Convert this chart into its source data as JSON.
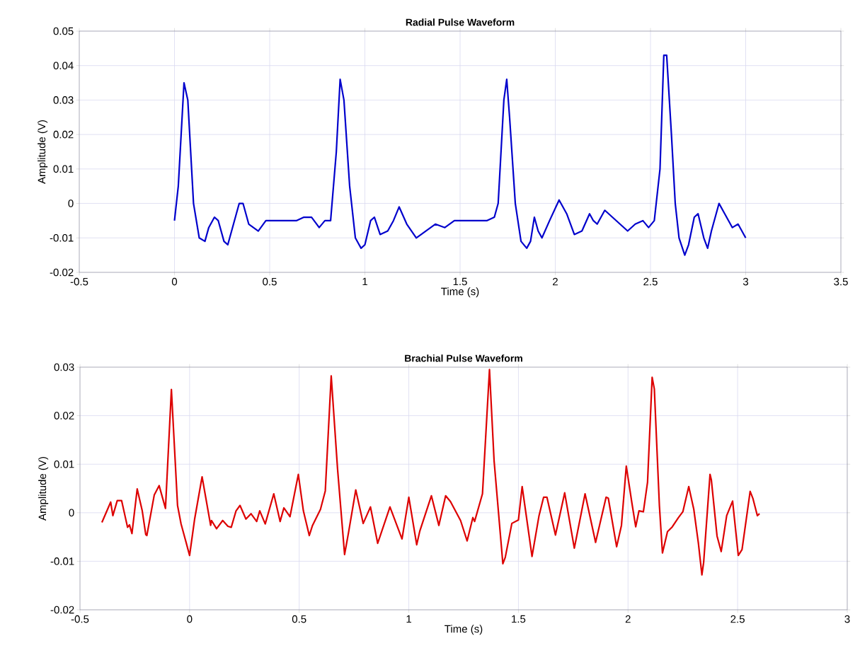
{
  "chart_data": [
    {
      "type": "line",
      "title": "Radial Pulse Waveform",
      "xlabel": "Time (s)",
      "ylabel": "Amplitude (V)",
      "grid": true,
      "xlim": [
        -0.5,
        3.5
      ],
      "xticks": [
        -0.5,
        0,
        0.5,
        1,
        1.5,
        2,
        2.5,
        3,
        3.5
      ],
      "ylim": [
        -0.02,
        0.05
      ],
      "yticks": [
        -0.02,
        -0.01,
        0,
        0.01,
        0.02,
        0.03,
        0.04,
        0.05
      ],
      "series": [
        {
          "color": "#0000cc",
          "x": [
            0,
            0.02,
            0.05,
            0.07,
            0.1,
            0.13,
            0.16,
            0.18,
            0.21,
            0.23,
            0.26,
            0.28,
            0.31,
            0.34,
            0.36,
            0.39,
            0.44,
            0.48,
            0.52,
            0.58,
            0.64,
            0.68,
            0.72,
            0.76,
            0.79,
            0.82,
            0.85,
            0.87,
            0.89,
            0.92,
            0.95,
            0.98,
            1.0,
            1.03,
            1.05,
            1.08,
            1.12,
            1.15,
            1.18,
            1.22,
            1.27,
            1.32,
            1.37,
            1.42,
            1.47,
            1.52,
            1.58,
            1.64,
            1.68,
            1.7,
            1.73,
            1.745,
            1.76,
            1.79,
            1.82,
            1.85,
            1.87,
            1.89,
            1.91,
            1.93,
            1.97,
            2.02,
            2.06,
            2.1,
            2.14,
            2.18,
            2.2,
            2.22,
            2.26,
            2.3,
            2.34,
            2.38,
            2.42,
            2.46,
            2.49,
            2.52,
            2.55,
            2.57,
            2.585,
            2.61,
            2.63,
            2.65,
            2.68,
            2.7,
            2.73,
            2.75,
            2.78,
            2.8,
            2.82,
            2.86,
            2.89,
            2.93,
            2.96,
            3.0
          ],
          "values": [
            -0.005,
            0.005,
            0.035,
            0.03,
            0.0,
            -0.01,
            -0.011,
            -0.007,
            -0.004,
            -0.005,
            -0.011,
            -0.012,
            -0.006,
            0.0,
            0.0,
            -0.006,
            -0.008,
            -0.005,
            -0.005,
            -0.005,
            -0.005,
            -0.004,
            -0.004,
            -0.007,
            -0.005,
            -0.005,
            0.015,
            0.036,
            0.03,
            0.005,
            -0.01,
            -0.013,
            -0.012,
            -0.005,
            -0.004,
            -0.009,
            -0.008,
            -0.005,
            -0.001,
            -0.006,
            -0.01,
            -0.008,
            -0.006,
            -0.007,
            -0.005,
            -0.005,
            -0.005,
            -0.005,
            -0.004,
            0.0,
            0.03,
            0.036,
            0.025,
            0.0,
            -0.011,
            -0.013,
            -0.011,
            -0.004,
            -0.008,
            -0.01,
            -0.005,
            0.001,
            -0.003,
            -0.009,
            -0.008,
            -0.003,
            -0.005,
            -0.006,
            -0.002,
            -0.004,
            -0.006,
            -0.008,
            -0.006,
            -0.005,
            -0.007,
            -0.005,
            0.01,
            0.043,
            0.043,
            0.02,
            0.0,
            -0.01,
            -0.015,
            -0.012,
            -0.004,
            -0.003,
            -0.01,
            -0.013,
            -0.008,
            0.0,
            -0.003,
            -0.007,
            -0.006,
            -0.01
          ]
        }
      ]
    },
    {
      "type": "line",
      "title": "Brachial Pulse Waveform",
      "xlabel": "Time (s)",
      "ylabel": "Amplitude (V)",
      "grid": true,
      "xlim": [
        -0.5,
        3
      ],
      "xticks": [
        -0.5,
        0,
        0.5,
        1,
        1.5,
        2,
        2.5,
        3
      ],
      "ylim": [
        -0.02,
        0.03
      ],
      "yticks": [
        -0.02,
        -0.01,
        0,
        0.01,
        0.02,
        0.03
      ],
      "series": [
        {
          "color": "#dd0000",
          "x": [
            -0.4,
            -0.36,
            -0.35,
            -0.33,
            -0.31,
            -0.283,
            -0.274,
            -0.263,
            -0.239,
            -0.216,
            -0.2,
            -0.195,
            -0.161,
            -0.139,
            -0.11,
            -0.083,
            -0.055,
            -0.039,
            -0.016,
            0,
            0.023,
            0.057,
            0.096,
            0.1,
            0.123,
            0.151,
            0.175,
            0.19,
            0.212,
            0.23,
            0.257,
            0.28,
            0.306,
            0.32,
            0.345,
            0.384,
            0.413,
            0.43,
            0.458,
            0.496,
            0.519,
            0.546,
            0.56,
            0.597,
            0.619,
            0.646,
            0.675,
            0.707,
            0.725,
            0.758,
            0.792,
            0.825,
            0.858,
            0.914,
            0.969,
            1.0,
            1.036,
            1.05,
            1.103,
            1.137,
            1.168,
            1.19,
            1.236,
            1.266,
            1.292,
            1.3,
            1.336,
            1.368,
            1.389,
            1.429,
            1.44,
            1.47,
            1.5,
            1.517,
            1.562,
            1.594,
            1.615,
            1.63,
            1.669,
            1.711,
            1.755,
            1.804,
            1.852,
            1.9,
            1.91,
            1.948,
            1.97,
            1.992,
            2.018,
            2.035,
            2.05,
            2.07,
            2.089,
            2.11,
            2.12,
            2.143,
            2.157,
            2.18,
            2.202,
            2.23,
            2.25,
            2.277,
            2.3,
            2.321,
            2.337,
            2.345,
            2.374,
            2.38,
            2.406,
            2.425,
            2.45,
            2.477,
            2.503,
            2.52,
            2.557,
            2.57,
            2.59,
            2.6
          ],
          "values": [
            -0.002,
            0.0022,
            -0.0006,
            0.0025,
            0.0025,
            -0.003,
            -0.0025,
            -0.0043,
            0.0049,
            0.0004,
            -0.0045,
            -0.0047,
            0.0037,
            0.0056,
            0.0009,
            0.0254,
            0.0015,
            -0.0023,
            -0.0061,
            -0.0088,
            -0.0013,
            0.0074,
            -0.0026,
            -0.0016,
            -0.0033,
            -0.0016,
            -0.0028,
            -0.003,
            0.0004,
            0.0015,
            -0.0013,
            -0.0002,
            -0.0018,
            0.0004,
            -0.0023,
            0.0039,
            -0.0018,
            0.001,
            -0.0008,
            0.0079,
            0.0004,
            -0.0047,
            -0.0027,
            0.0007,
            0.0045,
            0.0282,
            0.009,
            -0.0086,
            -0.0041,
            0.0047,
            -0.0022,
            0.0012,
            -0.0063,
            0.0012,
            -0.0054,
            0.0032,
            -0.0066,
            -0.0038,
            0.0035,
            -0.0026,
            0.0035,
            0.0023,
            -0.0016,
            -0.0058,
            -0.001,
            -0.0018,
            0.0039,
            0.0295,
            0.0107,
            -0.0105,
            -0.0092,
            -0.0022,
            -0.0015,
            0.0054,
            -0.009,
            -0.0006,
            0.0032,
            0.0032,
            -0.0046,
            0.0041,
            -0.0073,
            0.0039,
            -0.0061,
            0.0032,
            0.003,
            -0.007,
            -0.0026,
            0.0096,
            0.0019,
            -0.0029,
            0.0004,
            0.0002,
            0.0063,
            0.0279,
            0.0255,
            0.0015,
            -0.0083,
            -0.0039,
            -0.0029,
            -0.001,
            0.0002,
            0.0054,
            0.0007,
            -0.0063,
            -0.0128,
            -0.0102,
            0.0079,
            0.0068,
            -0.0048,
            -0.008,
            -0.0006,
            0.0024,
            -0.0088,
            -0.0076,
            0.0044,
            0.0029,
            -0.0006,
            -0.0002
          ]
        }
      ]
    }
  ]
}
